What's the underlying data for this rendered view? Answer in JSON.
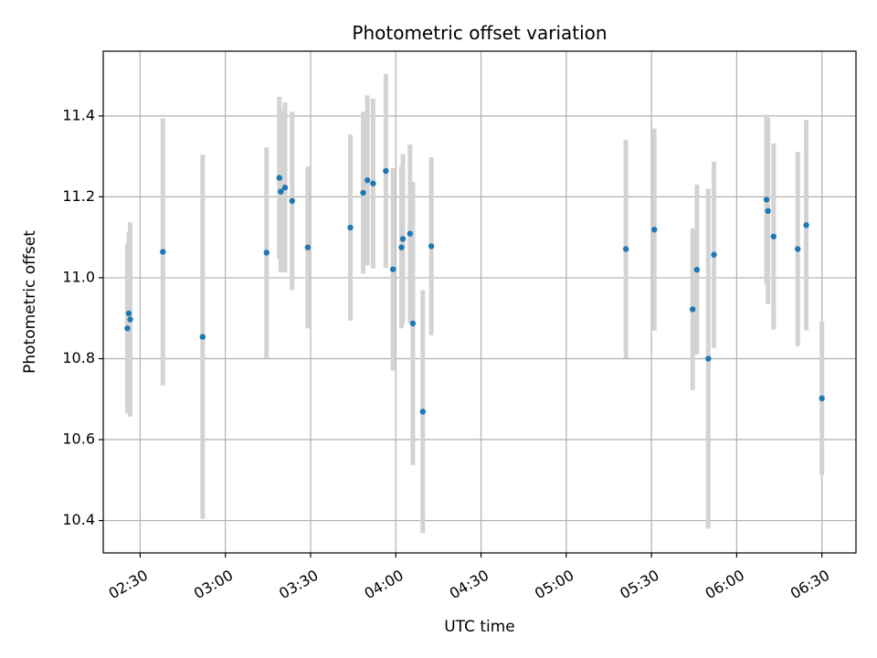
{
  "chart_data": {
    "type": "scatter",
    "title": "Photometric offset variation",
    "xlabel": "UTC time",
    "ylabel": "Photometric offset",
    "xlim": [
      "02:17",
      "06:42"
    ],
    "ylim": [
      10.32,
      11.56
    ],
    "x_ticks": [
      "02:30",
      "03:00",
      "03:30",
      "04:00",
      "04:30",
      "05:00",
      "05:30",
      "06:00",
      "06:30"
    ],
    "y_ticks": [
      "10.4",
      "10.6",
      "10.8",
      "11.0",
      "11.2",
      "11.4"
    ],
    "grid": true,
    "colors": {
      "point": "#1f77b4",
      "errorbar": "#d3d3d3",
      "grid": "#b0b0b0"
    },
    "series": [
      {
        "points": [
          {
            "x": "02:25:30",
            "y": 10.875,
            "err": 0.21
          },
          {
            "x": "02:26:00",
            "y": 10.912,
            "err": 0.2
          },
          {
            "x": "02:26:30",
            "y": 10.897,
            "err": 0.24
          },
          {
            "x": "02:38:00",
            "y": 11.064,
            "err": 0.33
          },
          {
            "x": "02:52:00",
            "y": 10.854,
            "err": 0.45
          },
          {
            "x": "03:14:30",
            "y": 11.062,
            "err": 0.26
          },
          {
            "x": "03:19:00",
            "y": 11.247,
            "err": 0.2
          },
          {
            "x": "03:19:30",
            "y": 11.213,
            "err": 0.2
          },
          {
            "x": "03:21:00",
            "y": 11.223,
            "err": 0.21
          },
          {
            "x": "03:23:30",
            "y": 11.19,
            "err": 0.22
          },
          {
            "x": "03:29:00",
            "y": 11.075,
            "err": 0.2
          },
          {
            "x": "03:44:00",
            "y": 11.124,
            "err": 0.23
          },
          {
            "x": "03:48:30",
            "y": 11.21,
            "err": 0.2
          },
          {
            "x": "03:50:00",
            "y": 11.241,
            "err": 0.21
          },
          {
            "x": "03:52:00",
            "y": 11.233,
            "err": 0.21
          },
          {
            "x": "03:56:30",
            "y": 11.264,
            "err": 0.24
          },
          {
            "x": "03:59:00",
            "y": 11.021,
            "err": 0.25
          },
          {
            "x": "04:02:00",
            "y": 11.075,
            "err": 0.2
          },
          {
            "x": "04:02:30",
            "y": 11.096,
            "err": 0.21
          },
          {
            "x": "04:05:00",
            "y": 11.109,
            "err": 0.22
          },
          {
            "x": "04:06:00",
            "y": 10.887,
            "err": 0.35
          },
          {
            "x": "04:09:30",
            "y": 10.669,
            "err": 0.3
          },
          {
            "x": "04:12:30",
            "y": 11.078,
            "err": 0.22
          },
          {
            "x": "05:21:00",
            "y": 11.071,
            "err": 0.27
          },
          {
            "x": "05:31:00",
            "y": 11.119,
            "err": 0.25
          },
          {
            "x": "05:44:30",
            "y": 10.922,
            "err": 0.2
          },
          {
            "x": "05:46:00",
            "y": 11.02,
            "err": 0.21
          },
          {
            "x": "05:50:00",
            "y": 10.8,
            "err": 0.42
          },
          {
            "x": "05:52:00",
            "y": 11.057,
            "err": 0.23
          },
          {
            "x": "06:10:30",
            "y": 11.193,
            "err": 0.21
          },
          {
            "x": "06:11:00",
            "y": 11.165,
            "err": 0.23
          },
          {
            "x": "06:13:00",
            "y": 11.102,
            "err": 0.23
          },
          {
            "x": "06:21:30",
            "y": 11.071,
            "err": 0.24
          },
          {
            "x": "06:24:30",
            "y": 11.13,
            "err": 0.26
          },
          {
            "x": "06:30:00",
            "y": 10.702,
            "err": 0.19
          }
        ]
      }
    ]
  }
}
